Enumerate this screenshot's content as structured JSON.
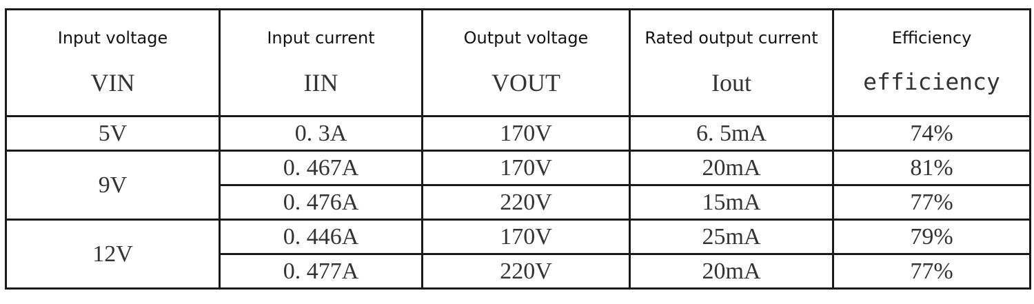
{
  "table": {
    "headers": [
      {
        "label": "Input voltage",
        "symbol": "VIN"
      },
      {
        "label": "Input current",
        "symbol": "IIN"
      },
      {
        "label": "Output voltage",
        "symbol": "VOUT"
      },
      {
        "label": "Rated output current",
        "symbol": "Iout"
      },
      {
        "label": "Efficiency",
        "symbol": "efficiency"
      }
    ],
    "groups": [
      {
        "vin": "5V",
        "rows": [
          {
            "iin": "0. 3A",
            "vout": "170V",
            "iout": "6. 5mA",
            "eff": "74%"
          }
        ]
      },
      {
        "vin": "9V",
        "rows": [
          {
            "iin": "0. 467A",
            "vout": "170V",
            "iout": "20mA",
            "eff": "81%"
          },
          {
            "iin": "0. 476A",
            "vout": "220V",
            "iout": "15mA",
            "eff": "77%"
          }
        ]
      },
      {
        "vin": "12V",
        "rows": [
          {
            "iin": "0. 446A",
            "vout": "170V",
            "iout": "25mA",
            "eff": "79%"
          },
          {
            "iin": "0. 477A",
            "vout": "220V",
            "iout": "20mA",
            "eff": "77%"
          }
        ]
      }
    ]
  }
}
